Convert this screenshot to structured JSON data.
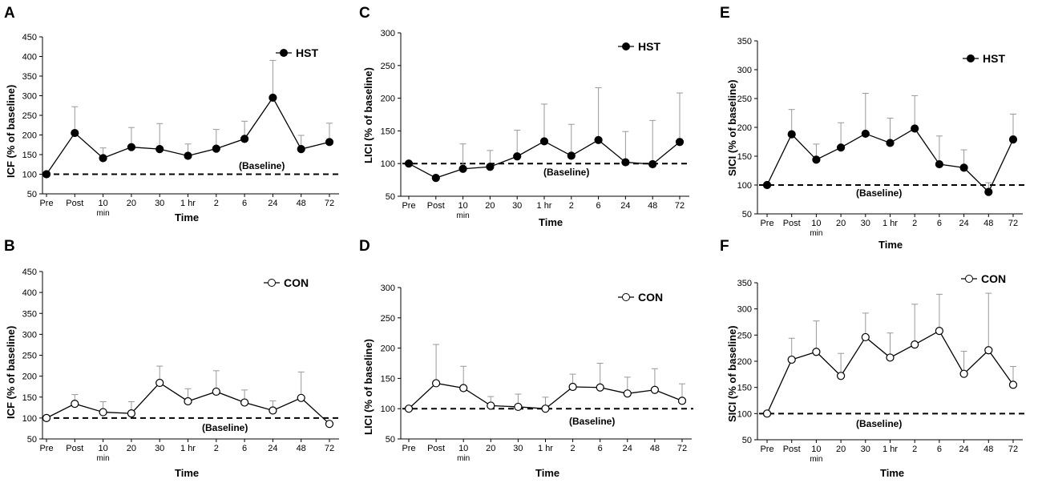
{
  "chart_data": [
    {
      "id": "A",
      "letter": "A",
      "type": "line",
      "title": "",
      "xlabel": "Time",
      "ylabel": "ICF (% of baseline)",
      "ylim": [
        50,
        450
      ],
      "yticks": [
        50,
        100,
        150,
        200,
        250,
        300,
        350,
        400,
        450
      ],
      "categories": [
        "Pre",
        "Post",
        "10",
        "20",
        "30",
        "1 hr",
        "2",
        "6",
        "24",
        "48",
        "72"
      ],
      "sublabels": [
        "",
        "",
        "min",
        "",
        "",
        "",
        "",
        "",
        "",
        "",
        ""
      ],
      "series": [
        {
          "name": "HST",
          "filled": true,
          "values": [
            100,
            205,
            141,
            169,
            164,
            147,
            165,
            190,
            295,
            164,
            182
          ],
          "errors": [
            0,
            67,
            26,
            50,
            65,
            30,
            49,
            45,
            95,
            35,
            48
          ]
        }
      ],
      "baseline": 100,
      "baseline_label": "(Baseline)",
      "legend": "HST"
    },
    {
      "id": "B",
      "letter": "B",
      "type": "line",
      "title": "",
      "xlabel": "Time",
      "ylabel": "ICF (% of baseline)",
      "ylim": [
        50,
        450
      ],
      "yticks": [
        50,
        100,
        150,
        200,
        250,
        300,
        350,
        400,
        450
      ],
      "categories": [
        "Pre",
        "Post",
        "10",
        "20",
        "30",
        "1 hr",
        "2",
        "6",
        "24",
        "48",
        "72"
      ],
      "sublabels": [
        "",
        "",
        "min",
        "",
        "",
        "",
        "",
        "",
        "",
        "",
        ""
      ],
      "series": [
        {
          "name": "CON",
          "filled": false,
          "values": [
            100,
            134,
            114,
            111,
            184,
            140,
            163,
            137,
            118,
            148,
            86
          ],
          "errors": [
            0,
            22,
            25,
            28,
            40,
            30,
            50,
            30,
            23,
            62,
            0
          ]
        }
      ],
      "baseline": 100,
      "baseline_label": "(Baseline)",
      "legend": "CON"
    },
    {
      "id": "C",
      "letter": "C",
      "type": "line",
      "title": "",
      "xlabel": "Time",
      "ylabel": "LICI (% of baseline)",
      "ylim": [
        50,
        300
      ],
      "yticks": [
        50,
        100,
        150,
        200,
        250,
        300
      ],
      "categories": [
        "Pre",
        "Post",
        "10",
        "20",
        "30",
        "1 hr",
        "2",
        "6",
        "24",
        "48",
        "72"
      ],
      "sublabels": [
        "",
        "",
        "min",
        "",
        "",
        "",
        "",
        "",
        "",
        "",
        ""
      ],
      "series": [
        {
          "name": "HST",
          "filled": true,
          "values": [
            100,
            78,
            92,
            95,
            111,
            134,
            112,
            136,
            102,
            99,
            133
          ],
          "errors": [
            0,
            0,
            38,
            25,
            40,
            57,
            48,
            80,
            47,
            67,
            75
          ]
        }
      ],
      "baseline": 100,
      "baseline_label": "(Baseline)",
      "legend": "HST"
    },
    {
      "id": "D",
      "letter": "D",
      "type": "line",
      "title": "",
      "xlabel": "Time",
      "ylabel": "LICI (% of baseline)",
      "ylim": [
        50,
        300
      ],
      "yticks": [
        50,
        100,
        150,
        200,
        250,
        300
      ],
      "categories": [
        "Pre",
        "Post",
        "10",
        "20",
        "30",
        "1 hr",
        "2",
        "6",
        "24",
        "48",
        "72"
      ],
      "sublabels": [
        "",
        "",
        "min",
        "",
        "",
        "",
        "",
        "",
        "",
        "",
        ""
      ],
      "series": [
        {
          "name": "CON",
          "filled": false,
          "values": [
            100,
            142,
            134,
            105,
            103,
            100,
            136,
            135,
            125,
            131,
            113
          ],
          "errors": [
            0,
            64,
            36,
            15,
            21,
            19,
            21,
            40,
            27,
            35,
            28
          ]
        }
      ],
      "baseline": 100,
      "baseline_label": "(Baseline)",
      "legend": "CON"
    },
    {
      "id": "E",
      "letter": "E",
      "type": "line",
      "title": "",
      "xlabel": "Time",
      "ylabel": "SICI (% of baseline)",
      "ylim": [
        50,
        350
      ],
      "yticks": [
        50,
        100,
        150,
        200,
        250,
        300,
        350
      ],
      "categories": [
        "Pre",
        "Post",
        "10",
        "20",
        "30",
        "1 hr",
        "2",
        "6",
        "24",
        "48",
        "72"
      ],
      "sublabels": [
        "",
        "",
        "min",
        "",
        "",
        "",
        "",
        "",
        "",
        "",
        ""
      ],
      "series": [
        {
          "name": "HST",
          "filled": true,
          "values": [
            100,
            188,
            144,
            165,
            189,
            173,
            198,
            136,
            130,
            88,
            179
          ],
          "errors": [
            0,
            43,
            27,
            43,
            70,
            43,
            57,
            49,
            31,
            16,
            44
          ]
        }
      ],
      "baseline": 100,
      "baseline_label": "(Baseline)",
      "legend": "HST"
    },
    {
      "id": "F",
      "letter": "F",
      "type": "line",
      "title": "",
      "xlabel": "Time",
      "ylabel": "SICI (% of baseline)",
      "ylim": [
        50,
        350
      ],
      "yticks": [
        50,
        100,
        150,
        200,
        250,
        300,
        350
      ],
      "categories": [
        "Pre",
        "Post",
        "10",
        "20",
        "30",
        "1 hr",
        "2",
        "6",
        "24",
        "48",
        "72"
      ],
      "sublabels": [
        "",
        "",
        "min",
        "",
        "",
        "",
        "",
        "",
        "",
        "",
        ""
      ],
      "series": [
        {
          "name": "CON",
          "filled": false,
          "values": [
            100,
            203,
            218,
            172,
            246,
            207,
            232,
            258,
            176,
            221,
            155
          ],
          "errors": [
            0,
            41,
            59,
            43,
            46,
            47,
            77,
            70,
            43,
            109,
            35
          ]
        }
      ],
      "baseline": 100,
      "baseline_label": "(Baseline)",
      "legend": "CON"
    }
  ]
}
